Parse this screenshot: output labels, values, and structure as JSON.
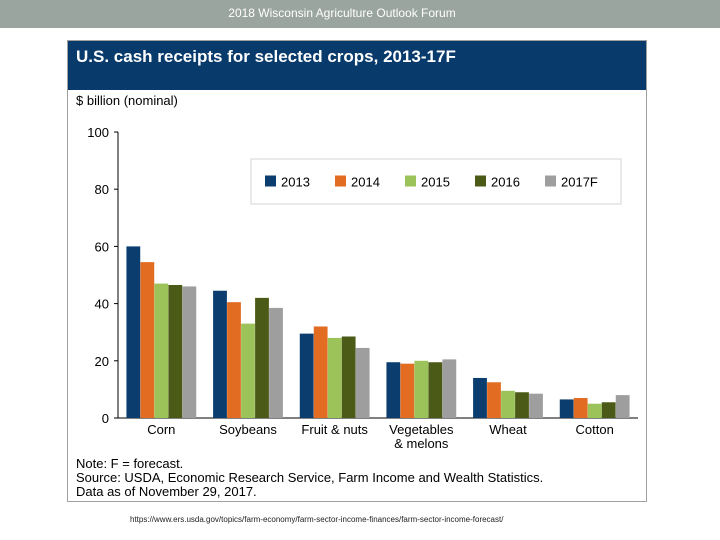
{
  "slide": {
    "header_title": "2018 Wisconsin Agriculture Outlook Forum",
    "footer_url": "https://www.ers.usda.gov/topics/farm-economy/farm-sector-income-finances/farm-sector-income-forecast/"
  },
  "colors": {
    "title_bar": "#083a6b",
    "top_bar": "#9aa59f"
  },
  "chart_data": {
    "type": "bar",
    "title": "U.S. cash receipts for selected crops, 2013-17F",
    "ylabel": "$ billion (nominal)",
    "xlabel": "",
    "ylim": [
      0,
      100
    ],
    "yticks": [
      0,
      20,
      40,
      60,
      80,
      100
    ],
    "grid": false,
    "legend_position": "top-right",
    "categories": [
      "Corn",
      "Soybeans",
      "Fruit & nuts",
      "Vegetables\n& melons",
      "Wheat",
      "Cotton"
    ],
    "series": [
      {
        "name": "2013",
        "color": "#0b3d6e",
        "values": [
          60,
          44.5,
          29.5,
          19.5,
          14,
          6.5
        ]
      },
      {
        "name": "2014",
        "color": "#e36c23",
        "values": [
          54.5,
          40.5,
          32,
          19,
          12.5,
          7
        ]
      },
      {
        "name": "2015",
        "color": "#9cc35a",
        "values": [
          47,
          33,
          28,
          20,
          9.5,
          5
        ]
      },
      {
        "name": "2016",
        "color": "#4b5a16",
        "values": [
          46.5,
          42,
          28.5,
          19.5,
          9,
          5.5
        ]
      },
      {
        "name": "2017F",
        "color": "#9e9e9e",
        "values": [
          46,
          38.5,
          24.5,
          20.5,
          8.5,
          8
        ]
      }
    ],
    "notes": [
      "Note: F = forecast.",
      "Source: USDA, Economic Research Service, Farm Income and Wealth Statistics.",
      "Data as of November 29, 2017."
    ]
  }
}
